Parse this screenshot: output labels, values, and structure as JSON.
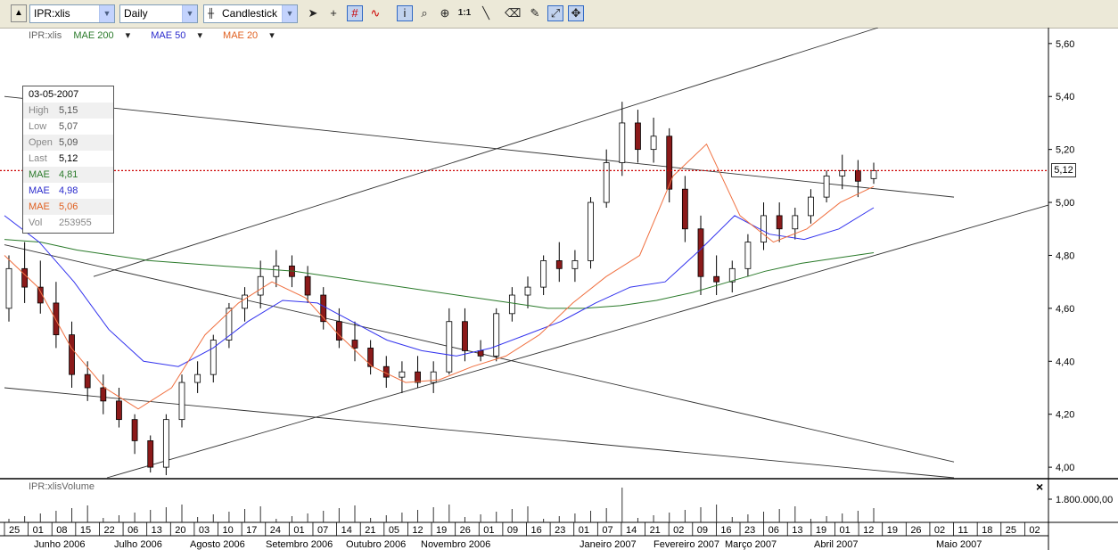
{
  "toolbar": {
    "symbol_value": "IPR:xlis",
    "period_value": "Daily",
    "chart_type_value": "Candlestick",
    "icons": [
      "scroll-up-icon",
      "pointer-icon",
      "crosshair-icon",
      "grid-icon",
      "indicator-icon",
      "info-icon",
      "zoom-box-icon",
      "zoom-icon",
      "one-to-one-icon",
      "line-tool-icon",
      "eraser-icon",
      "delete-icon",
      "auto-scale-icon",
      "snap-icon"
    ],
    "one_to_one_label": "1:1"
  },
  "legend": {
    "symbol": "IPR:xlis",
    "mae200": "MAE 200",
    "mae50": "MAE 50",
    "mae20": "MAE 20",
    "dropdown_glyph": "▾"
  },
  "data_window": {
    "date": "03-05-2007",
    "rows": [
      {
        "label": "High",
        "value": "5,15",
        "color": "#555555"
      },
      {
        "label": "Low",
        "value": "5,07",
        "color": "#555555"
      },
      {
        "label": "Open",
        "value": "5,09",
        "color": "#555555"
      },
      {
        "label": "Last",
        "value": "5,12",
        "color": "#000000"
      },
      {
        "label": "MAE",
        "value": "4,81",
        "color": "#2a7a2a"
      },
      {
        "label": "MAE",
        "value": "4,98",
        "color": "#2a2acc"
      },
      {
        "label": "MAE",
        "value": "5,06",
        "color": "#e06020"
      },
      {
        "label": "Vol",
        "value": "253955",
        "color": "#888888"
      }
    ]
  },
  "volume_pane": {
    "label": "IPR:xlisVolume",
    "close_glyph": "×",
    "axis_label": "1.800.000,00"
  },
  "last_price_tag": "5,12",
  "colors": {
    "up": "#ffffff",
    "down": "#8b1a1a",
    "mae200": "#2a7a2a",
    "mae50": "#3333ee",
    "mae20": "#f07040",
    "last_line": "#cc0000"
  },
  "chart_data": {
    "type": "candlestick",
    "symbol": "IPR:xlis",
    "period": "Daily",
    "y_axis": {
      "ticks": [
        "5,60",
        "5,40",
        "5,20",
        "5,00",
        "4,80",
        "4,60",
        "4,40",
        "4,20",
        "4,00"
      ],
      "range": [
        3.96,
        5.66
      ]
    },
    "x_axis": {
      "day_ticks": [
        "25",
        "01",
        "08",
        "15",
        "22",
        "06",
        "13",
        "20",
        "03",
        "10",
        "17",
        "24",
        "01",
        "07",
        "14",
        "21",
        "05",
        "12",
        "19",
        "26",
        "01",
        "09",
        "16",
        "23",
        "01",
        "07",
        "14",
        "21",
        "02",
        "09",
        "16",
        "23",
        "06",
        "13",
        "19",
        "01",
        "12",
        "19",
        "26",
        "02",
        "11",
        "18",
        "25",
        "02"
      ],
      "month_labels": [
        "Junho 2006",
        "Julho 2006",
        "Agosto 2006",
        "Setembro 2006",
        "Outubro 2006",
        "Novembro 2006",
        "Janeiro 2007",
        "Fevereiro 2007",
        "Março 2007",
        "Abril 2007",
        "Maio 2007"
      ]
    },
    "last": 5.12,
    "series": [
      {
        "name": "MAE 200",
        "values": [
          4.86,
          4.85,
          4.82,
          4.8,
          4.78,
          4.77,
          4.76,
          4.75,
          4.74,
          4.72,
          4.7,
          4.68,
          4.66,
          4.64,
          4.62,
          4.6,
          4.6,
          4.61,
          4.63,
          4.66,
          4.7,
          4.74,
          4.77,
          4.79,
          4.81
        ]
      },
      {
        "name": "MAE 50",
        "values": [
          4.95,
          4.85,
          4.7,
          4.52,
          4.4,
          4.38,
          4.45,
          4.55,
          4.63,
          4.62,
          4.55,
          4.48,
          4.44,
          4.42,
          4.45,
          4.5,
          4.55,
          4.62,
          4.68,
          4.7,
          4.82,
          4.95,
          4.88,
          4.86,
          4.9,
          4.98
        ]
      },
      {
        "name": "MAE 20",
        "values": [
          4.8,
          4.68,
          4.45,
          4.3,
          4.22,
          4.3,
          4.5,
          4.62,
          4.7,
          4.64,
          4.5,
          4.38,
          4.32,
          4.33,
          4.38,
          4.42,
          4.5,
          4.62,
          4.72,
          4.8,
          5.1,
          5.22,
          4.95,
          4.85,
          4.9,
          5.0,
          5.06
        ]
      }
    ],
    "candles": [
      [
        4.6,
        4.8,
        4.55,
        4.75
      ],
      [
        4.75,
        4.85,
        4.62,
        4.68
      ],
      [
        4.68,
        4.78,
        4.58,
        4.62
      ],
      [
        4.62,
        4.7,
        4.45,
        4.5
      ],
      [
        4.5,
        4.55,
        4.3,
        4.35
      ],
      [
        4.35,
        4.4,
        4.25,
        4.3
      ],
      [
        4.3,
        4.35,
        4.2,
        4.25
      ],
      [
        4.25,
        4.3,
        4.15,
        4.18
      ],
      [
        4.18,
        4.2,
        4.05,
        4.1
      ],
      [
        4.1,
        4.12,
        3.98,
        4.0
      ],
      [
        4.0,
        4.2,
        3.97,
        4.18
      ],
      [
        4.18,
        4.35,
        4.15,
        4.32
      ],
      [
        4.32,
        4.4,
        4.28,
        4.35
      ],
      [
        4.35,
        4.5,
        4.32,
        4.48
      ],
      [
        4.48,
        4.62,
        4.45,
        4.6
      ],
      [
        4.6,
        4.68,
        4.55,
        4.65
      ],
      [
        4.65,
        4.78,
        4.6,
        4.72
      ],
      [
        4.72,
        4.82,
        4.68,
        4.76
      ],
      [
        4.76,
        4.8,
        4.68,
        4.72
      ],
      [
        4.72,
        4.76,
        4.62,
        4.65
      ],
      [
        4.65,
        4.68,
        4.52,
        4.55
      ],
      [
        4.55,
        4.6,
        4.45,
        4.48
      ],
      [
        4.48,
        4.55,
        4.4,
        4.45
      ],
      [
        4.45,
        4.48,
        4.35,
        4.38
      ],
      [
        4.38,
        4.42,
        4.3,
        4.34
      ],
      [
        4.34,
        4.4,
        4.28,
        4.36
      ],
      [
        4.36,
        4.42,
        4.3,
        4.32
      ],
      [
        4.32,
        4.4,
        4.28,
        4.36
      ],
      [
        4.36,
        4.6,
        4.35,
        4.55
      ],
      [
        4.55,
        4.6,
        4.4,
        4.44
      ],
      [
        4.44,
        4.48,
        4.4,
        4.42
      ],
      [
        4.42,
        4.6,
        4.4,
        4.58
      ],
      [
        4.58,
        4.68,
        4.55,
        4.65
      ],
      [
        4.65,
        4.72,
        4.6,
        4.68
      ],
      [
        4.68,
        4.8,
        4.65,
        4.78
      ],
      [
        4.78,
        4.85,
        4.7,
        4.75
      ],
      [
        4.75,
        4.82,
        4.7,
        4.78
      ],
      [
        4.78,
        5.02,
        4.75,
        5.0
      ],
      [
        5.0,
        5.2,
        4.98,
        5.15
      ],
      [
        5.15,
        5.38,
        5.1,
        5.3
      ],
      [
        5.3,
        5.35,
        5.15,
        5.2
      ],
      [
        5.2,
        5.32,
        5.15,
        5.25
      ],
      [
        5.25,
        5.28,
        5.0,
        5.05
      ],
      [
        5.05,
        5.1,
        4.85,
        4.9
      ],
      [
        4.9,
        4.95,
        4.65,
        4.72
      ],
      [
        4.72,
        4.8,
        4.65,
        4.7
      ],
      [
        4.7,
        4.78,
        4.66,
        4.75
      ],
      [
        4.75,
        4.88,
        4.72,
        4.85
      ],
      [
        4.85,
        5.0,
        4.82,
        4.95
      ],
      [
        4.95,
        5.0,
        4.85,
        4.9
      ],
      [
        4.9,
        4.98,
        4.86,
        4.95
      ],
      [
        4.95,
        5.05,
        4.92,
        5.02
      ],
      [
        5.02,
        5.12,
        5.0,
        5.1
      ],
      [
        5.1,
        5.18,
        5.05,
        5.12
      ],
      [
        5.12,
        5.16,
        5.02,
        5.08
      ],
      [
        5.09,
        5.15,
        5.07,
        5.12
      ]
    ]
  }
}
